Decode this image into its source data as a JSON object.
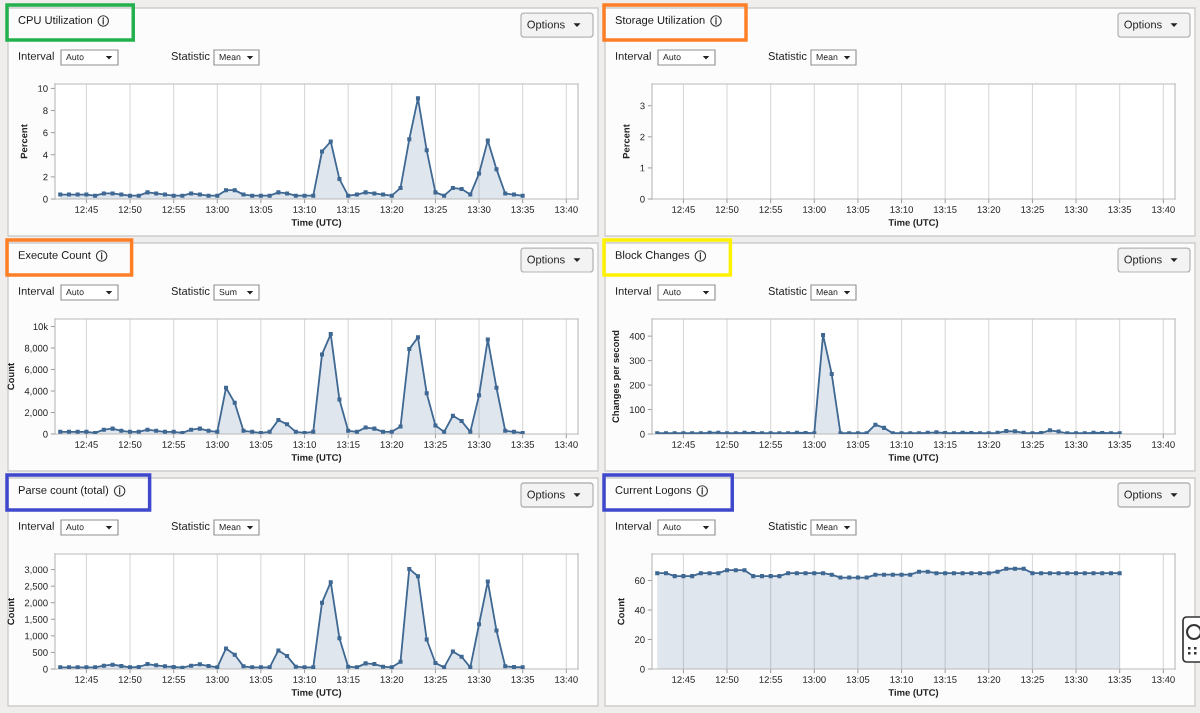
{
  "chart_data": [
    {
      "type": "area",
      "title": "CPU Utilization",
      "xlabel": "Time (UTC)",
      "ylabel": "Percent",
      "annotations": [
        "Interval",
        "Auto",
        "Statistic",
        "Mean",
        "Options"
      ],
      "grid": "x",
      "marker": "square",
      "x": [
        12.7,
        12.7167,
        12.7333,
        12.75,
        12.7667,
        12.7833,
        12.8,
        12.8167,
        12.8333,
        12.85,
        12.8667,
        12.8833,
        12.9,
        12.9167,
        12.9333,
        12.95,
        12.9667,
        12.9833,
        13,
        13.0167,
        13.0333,
        13.05,
        13.0667,
        13.0833,
        13.1,
        13.1167,
        13.1333,
        13.15,
        13.1667,
        13.1833,
        13.2,
        13.2167,
        13.2333,
        13.25,
        13.2667,
        13.2833,
        13.3,
        13.3167,
        13.3333,
        13.35,
        13.3667,
        13.3833,
        13.4,
        13.4167,
        13.4333,
        13.45,
        13.4667,
        13.4833,
        13.5,
        13.5167,
        13.5333,
        13.55,
        13.5667,
        13.5833
      ],
      "series": [
        {
          "color": "#3f6893",
          "values": [
            0.4,
            0.4,
            0.4,
            0.4,
            0.3,
            0.5,
            0.5,
            0.4,
            0.3,
            0.3,
            0.6,
            0.5,
            0.4,
            0.3,
            0.3,
            0.5,
            0.4,
            0.3,
            0.3,
            0.8,
            0.8,
            0.4,
            0.3,
            0.3,
            0.3,
            0.6,
            0.5,
            0.3,
            0.3,
            0.3,
            4.3,
            5.2,
            1.8,
            0.3,
            0.4,
            0.6,
            0.5,
            0.4,
            0.3,
            1.0,
            5.4,
            9.1,
            4.4,
            0.6,
            0.3,
            1.0,
            0.9,
            0.4,
            2.3,
            5.3,
            2.7,
            0.5,
            0.4,
            0.3
          ]
        }
      ],
      "xlim": [
        12.69,
        13.689
      ],
      "xticks": [
        {
          "value": 12.75,
          "label": "12:45"
        },
        {
          "value": 12.8333,
          "label": "12:50"
        },
        {
          "value": 12.9167,
          "label": "12:55"
        },
        {
          "value": 13,
          "label": "13:00"
        },
        {
          "value": 13.0833,
          "label": "13:05"
        },
        {
          "value": 13.1667,
          "label": "13:10"
        },
        {
          "value": 13.25,
          "label": "13:15"
        },
        {
          "value": 13.3333,
          "label": "13:20"
        },
        {
          "value": 13.4167,
          "label": "13:25"
        },
        {
          "value": 13.5,
          "label": "13:30"
        },
        {
          "value": 13.5833,
          "label": "13:35"
        },
        {
          "value": 13.6667,
          "label": "13:40"
        }
      ],
      "ylim": [
        0,
        10.4
      ],
      "yticks": [
        0,
        2,
        4,
        6,
        8,
        10
      ]
    },
    {
      "type": "area",
      "title": "Storage Utilization",
      "xlabel": "Time (UTC)",
      "ylabel": "Percent",
      "annotations": [
        "Interval",
        "Auto",
        "Statistic",
        "Mean",
        "Options"
      ],
      "grid": "x",
      "xlim": [
        12.69,
        13.689
      ],
      "xticks": [
        {
          "value": 12.75,
          "label": "12:45"
        },
        {
          "value": 12.8333,
          "label": "12:50"
        },
        {
          "value": 12.9167,
          "label": "12:55"
        },
        {
          "value": 13,
          "label": "13:00"
        },
        {
          "value": 13.0833,
          "label": "13:05"
        },
        {
          "value": 13.1667,
          "label": "13:10"
        },
        {
          "value": 13.25,
          "label": "13:15"
        },
        {
          "value": 13.3333,
          "label": "13:20"
        },
        {
          "value": 13.4167,
          "label": "13:25"
        },
        {
          "value": 13.5,
          "label": "13:30"
        },
        {
          "value": 13.5833,
          "label": "13:35"
        },
        {
          "value": 13.6667,
          "label": "13:40"
        }
      ],
      "ylim": [
        0,
        3.7
      ],
      "yticks": [
        0,
        1,
        2,
        3
      ]
    },
    {
      "type": "area",
      "title": "Execute Count",
      "xlabel": "Time (UTC)",
      "ylabel": "Count",
      "annotations": [
        "Interval",
        "Auto",
        "Statistic",
        "Sum",
        "Options"
      ],
      "grid": "x",
      "marker": "square",
      "x": [
        12.7,
        12.7167,
        12.7333,
        12.75,
        12.7667,
        12.7833,
        12.8,
        12.8167,
        12.8333,
        12.85,
        12.8667,
        12.8833,
        12.9,
        12.9167,
        12.9333,
        12.95,
        12.9667,
        12.9833,
        13,
        13.0167,
        13.0333,
        13.05,
        13.0667,
        13.0833,
        13.1,
        13.1167,
        13.1333,
        13.15,
        13.1667,
        13.1833,
        13.2,
        13.2167,
        13.2333,
        13.25,
        13.2667,
        13.2833,
        13.3,
        13.3167,
        13.3333,
        13.35,
        13.3667,
        13.3833,
        13.4,
        13.4167,
        13.4333,
        13.45,
        13.4667,
        13.4833,
        13.5,
        13.5167,
        13.5333,
        13.55,
        13.5667,
        13.5833
      ],
      "series": [
        {
          "color": "#3f6893",
          "values": [
            200,
            200,
            200,
            200,
            100,
            400,
            500,
            300,
            200,
            200,
            400,
            300,
            200,
            200,
            100,
            400,
            500,
            300,
            200,
            4300,
            2900,
            300,
            200,
            100,
            200,
            1300,
            900,
            200,
            100,
            200,
            7400,
            9300,
            3200,
            300,
            200,
            600,
            500,
            200,
            200,
            700,
            7900,
            9000,
            3800,
            800,
            200,
            1700,
            1200,
            200,
            3600,
            8800,
            4300,
            300,
            200,
            100
          ]
        }
      ],
      "xlim": [
        12.69,
        13.689
      ],
      "xticks": [
        {
          "value": 12.75,
          "label": "12:45"
        },
        {
          "value": 12.8333,
          "label": "12:50"
        },
        {
          "value": 12.9167,
          "label": "12:55"
        },
        {
          "value": 13,
          "label": "13:00"
        },
        {
          "value": 13.0833,
          "label": "13:05"
        },
        {
          "value": 13.1667,
          "label": "13:10"
        },
        {
          "value": 13.25,
          "label": "13:15"
        },
        {
          "value": 13.3333,
          "label": "13:20"
        },
        {
          "value": 13.4167,
          "label": "13:25"
        },
        {
          "value": 13.5,
          "label": "13:30"
        },
        {
          "value": 13.5833,
          "label": "13:35"
        },
        {
          "value": 13.6667,
          "label": "13:40"
        }
      ],
      "ylim": [
        0,
        10700
      ],
      "yticks": [
        0,
        {
          "value": 2000,
          "label": "2,000"
        },
        {
          "value": 4000,
          "label": "4,000"
        },
        {
          "value": 6000,
          "label": "6,000"
        },
        {
          "value": 8000,
          "label": "8,000"
        },
        {
          "value": 10000,
          "label": "10k"
        }
      ]
    },
    {
      "type": "area",
      "title": "Block Changes",
      "xlabel": "Time (UTC)",
      "ylabel": "Changes per second",
      "annotations": [
        "Interval",
        "Auto",
        "Statistic",
        "Mean",
        "Options"
      ],
      "grid": "x",
      "marker": "square",
      "x": [
        12.7,
        12.7167,
        12.7333,
        12.75,
        12.7667,
        12.7833,
        12.8,
        12.8167,
        12.8333,
        12.85,
        12.8667,
        12.8833,
        12.9,
        12.9167,
        12.9333,
        12.95,
        12.9667,
        12.9833,
        13,
        13.0167,
        13.0333,
        13.05,
        13.0667,
        13.0833,
        13.1,
        13.1167,
        13.1333,
        13.15,
        13.1667,
        13.1833,
        13.2,
        13.2167,
        13.2333,
        13.25,
        13.2667,
        13.2833,
        13.3,
        13.3167,
        13.3333,
        13.35,
        13.3667,
        13.3833,
        13.4,
        13.4167,
        13.4333,
        13.45,
        13.4667,
        13.4833,
        13.5,
        13.5167,
        13.5333,
        13.55,
        13.5667,
        13.5833
      ],
      "series": [
        {
          "color": "#3f6893",
          "values": [
            3,
            3,
            3,
            3,
            3,
            3,
            5,
            5,
            3,
            3,
            5,
            4,
            3,
            3,
            3,
            3,
            5,
            4,
            3,
            405,
            245,
            3,
            3,
            3,
            3,
            38,
            25,
            3,
            3,
            3,
            3,
            5,
            7,
            4,
            3,
            5,
            4,
            3,
            3,
            5,
            12,
            11,
            5,
            3,
            4,
            15,
            10,
            3,
            3,
            3,
            5,
            4,
            3,
            3
          ]
        }
      ],
      "xlim": [
        12.69,
        13.689
      ],
      "xticks": [
        {
          "value": 12.75,
          "label": "12:45"
        },
        {
          "value": 12.8333,
          "label": "12:50"
        },
        {
          "value": 12.9167,
          "label": "12:55"
        },
        {
          "value": 13,
          "label": "13:00"
        },
        {
          "value": 13.0833,
          "label": "13:05"
        },
        {
          "value": 13.1667,
          "label": "13:10"
        },
        {
          "value": 13.25,
          "label": "13:15"
        },
        {
          "value": 13.3333,
          "label": "13:20"
        },
        {
          "value": 13.4167,
          "label": "13:25"
        },
        {
          "value": 13.5,
          "label": "13:30"
        },
        {
          "value": 13.5833,
          "label": "13:35"
        },
        {
          "value": 13.6667,
          "label": "13:40"
        }
      ],
      "ylim": [
        0,
        470
      ],
      "yticks": [
        0,
        100,
        200,
        300,
        400
      ]
    },
    {
      "type": "area",
      "title": "Parse count (total)",
      "xlabel": "Time (UTC)",
      "ylabel": "Count",
      "annotations": [
        "Interval",
        "Auto",
        "Statistic",
        "Mean",
        "Options"
      ],
      "grid": "x",
      "marker": "square",
      "x": [
        12.7,
        12.7167,
        12.7333,
        12.75,
        12.7667,
        12.7833,
        12.8,
        12.8167,
        12.8333,
        12.85,
        12.8667,
        12.8833,
        12.9,
        12.9167,
        12.9333,
        12.95,
        12.9667,
        12.9833,
        13,
        13.0167,
        13.0333,
        13.05,
        13.0667,
        13.0833,
        13.1,
        13.1167,
        13.1333,
        13.15,
        13.1667,
        13.1833,
        13.2,
        13.2167,
        13.2333,
        13.25,
        13.2667,
        13.2833,
        13.3,
        13.3167,
        13.3333,
        13.35,
        13.3667,
        13.3833,
        13.4,
        13.4167,
        13.4333,
        13.45,
        13.4667,
        13.4833,
        13.5,
        13.5167,
        13.5333,
        13.55,
        13.5667,
        13.5833
      ],
      "series": [
        {
          "color": "#3f6893",
          "values": [
            50,
            50,
            50,
            50,
            50,
            100,
            130,
            90,
            50,
            60,
            150,
            110,
            80,
            60,
            40,
            100,
            140,
            90,
            50,
            620,
            430,
            80,
            50,
            50,
            50,
            560,
            390,
            70,
            50,
            50,
            2000,
            2620,
            930,
            70,
            50,
            170,
            150,
            70,
            50,
            220,
            3020,
            2800,
            890,
            180,
            50,
            530,
            370,
            50,
            1350,
            2640,
            1160,
            80,
            60,
            50
          ]
        }
      ],
      "xlim": [
        12.69,
        13.689
      ],
      "xticks": [
        {
          "value": 12.75,
          "label": "12:45"
        },
        {
          "value": 12.8333,
          "label": "12:50"
        },
        {
          "value": 12.9167,
          "label": "12:55"
        },
        {
          "value": 13,
          "label": "13:00"
        },
        {
          "value": 13.0833,
          "label": "13:05"
        },
        {
          "value": 13.1667,
          "label": "13:10"
        },
        {
          "value": 13.25,
          "label": "13:15"
        },
        {
          "value": 13.3333,
          "label": "13:20"
        },
        {
          "value": 13.4167,
          "label": "13:25"
        },
        {
          "value": 13.5,
          "label": "13:30"
        },
        {
          "value": 13.5833,
          "label": "13:35"
        },
        {
          "value": 13.6667,
          "label": "13:40"
        }
      ],
      "ylim": [
        0,
        3470
      ],
      "yticks": [
        0,
        500,
        {
          "value": 1000,
          "label": "1,000"
        },
        {
          "value": 1500,
          "label": "1,500"
        },
        {
          "value": 2000,
          "label": "2,000"
        },
        {
          "value": 2500,
          "label": "2,500"
        },
        {
          "value": 3000,
          "label": "3,000"
        }
      ]
    },
    {
      "type": "area",
      "title": "Current Logons",
      "xlabel": "Time (UTC)",
      "ylabel": "Count",
      "annotations": [
        "Interval",
        "Auto",
        "Statistic",
        "Mean",
        "Options"
      ],
      "grid": "x",
      "marker": "square",
      "x": [
        12.7,
        12.7167,
        12.7333,
        12.75,
        12.7667,
        12.7833,
        12.8,
        12.8167,
        12.8333,
        12.85,
        12.8667,
        12.8833,
        12.9,
        12.9167,
        12.9333,
        12.95,
        12.9667,
        12.9833,
        13,
        13.0167,
        13.0333,
        13.05,
        13.0667,
        13.0833,
        13.1,
        13.1167,
        13.1333,
        13.15,
        13.1667,
        13.1833,
        13.2,
        13.2167,
        13.2333,
        13.25,
        13.2667,
        13.2833,
        13.3,
        13.3167,
        13.3333,
        13.35,
        13.3667,
        13.3833,
        13.4,
        13.4167,
        13.4333,
        13.45,
        13.4667,
        13.4833,
        13.5,
        13.5167,
        13.5333,
        13.55,
        13.5667,
        13.5833
      ],
      "series": [
        {
          "color": "#3f6893",
          "values": [
            65,
            65,
            63,
            63,
            63,
            65,
            65,
            65,
            67,
            67,
            67,
            63,
            63,
            63,
            63,
            65,
            65,
            65,
            65,
            65,
            64,
            62,
            62,
            62,
            62,
            64,
            64,
            64,
            64,
            64,
            66,
            66,
            65,
            65,
            65,
            65,
            65,
            65,
            65,
            66,
            68,
            68,
            68,
            65,
            65,
            65,
            65,
            65,
            65,
            65,
            65,
            65,
            65,
            65
          ]
        }
      ],
      "xlim": [
        12.69,
        13.689
      ],
      "xticks": [
        {
          "value": 12.75,
          "label": "12:45"
        },
        {
          "value": 12.8333,
          "label": "12:50"
        },
        {
          "value": 12.9167,
          "label": "12:55"
        },
        {
          "value": 13,
          "label": "13:00"
        },
        {
          "value": 13.0833,
          "label": "13:05"
        },
        {
          "value": 13.1667,
          "label": "13:10"
        },
        {
          "value": 13.25,
          "label": "13:15"
        },
        {
          "value": 13.3333,
          "label": "13:20"
        },
        {
          "value": 13.4167,
          "label": "13:25"
        },
        {
          "value": 13.5,
          "label": "13:30"
        },
        {
          "value": 13.5833,
          "label": "13:35"
        },
        {
          "value": 13.6667,
          "label": "13:40"
        }
      ],
      "ylim": [
        0,
        78
      ],
      "yticks": [
        0,
        20,
        40,
        60
      ]
    }
  ]
}
